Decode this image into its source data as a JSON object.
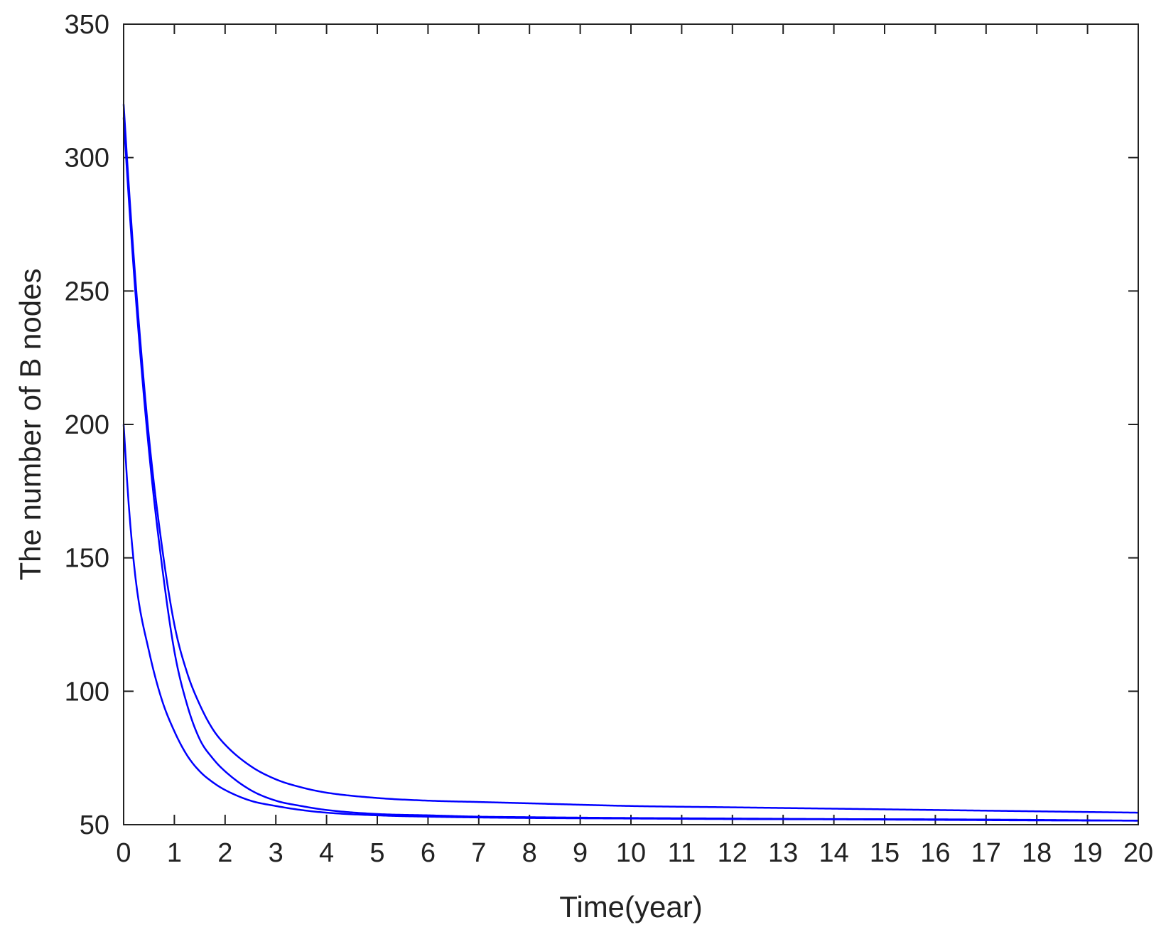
{
  "chart_data": {
    "type": "line",
    "title": "",
    "xlabel": "Time(year)",
    "ylabel": "The number of B nodes",
    "xlim": [
      0,
      20
    ],
    "ylim": [
      50,
      350
    ],
    "xticks": [
      0,
      1,
      2,
      3,
      4,
      5,
      6,
      7,
      8,
      9,
      10,
      11,
      12,
      13,
      14,
      15,
      16,
      17,
      18,
      19,
      20
    ],
    "yticks": [
      50,
      100,
      150,
      200,
      250,
      300,
      350
    ],
    "grid": false,
    "legend": "none",
    "line_color": "#0000ff",
    "series": [
      {
        "x": [
          0,
          0.1,
          0.25,
          0.5,
          0.75,
          1,
          1.25,
          1.5,
          1.75,
          2,
          2.5,
          3,
          3.5,
          4,
          5,
          6,
          7,
          8,
          10,
          12,
          14,
          16,
          18,
          20
        ],
        "values": [
          320,
          290,
          250,
          195,
          155,
          125,
          107,
          95,
          86,
          80,
          72,
          67,
          64,
          62,
          60,
          59,
          58.5,
          58,
          57,
          56.5,
          56,
          55.5,
          55,
          54.5
        ]
      },
      {
        "x": [
          0,
          0.1,
          0.25,
          0.5,
          0.75,
          1,
          1.25,
          1.5,
          1.75,
          2,
          2.5,
          3,
          3.5,
          4,
          5,
          6,
          7,
          8,
          10,
          12,
          14,
          16,
          18,
          20
        ],
        "values": [
          315,
          285,
          245,
          190,
          148,
          115,
          95,
          82,
          75,
          70,
          63,
          59,
          57,
          55.5,
          54,
          53.5,
          53,
          52.8,
          52.5,
          52.3,
          52.1,
          52,
          51.8,
          51.5
        ]
      },
      {
        "x": [
          0,
          0.1,
          0.25,
          0.5,
          0.75,
          1,
          1.25,
          1.5,
          1.75,
          2,
          2.5,
          3,
          3.5,
          4,
          5,
          6,
          7,
          8,
          10,
          12,
          14,
          16,
          18,
          20
        ],
        "values": [
          200,
          170,
          140,
          115,
          97,
          85,
          76,
          70,
          66,
          63,
          59,
          57,
          55.5,
          54.5,
          53.5,
          53,
          52.7,
          52.5,
          52.3,
          52.1,
          52,
          51.8,
          51.6,
          51.5
        ]
      }
    ]
  }
}
